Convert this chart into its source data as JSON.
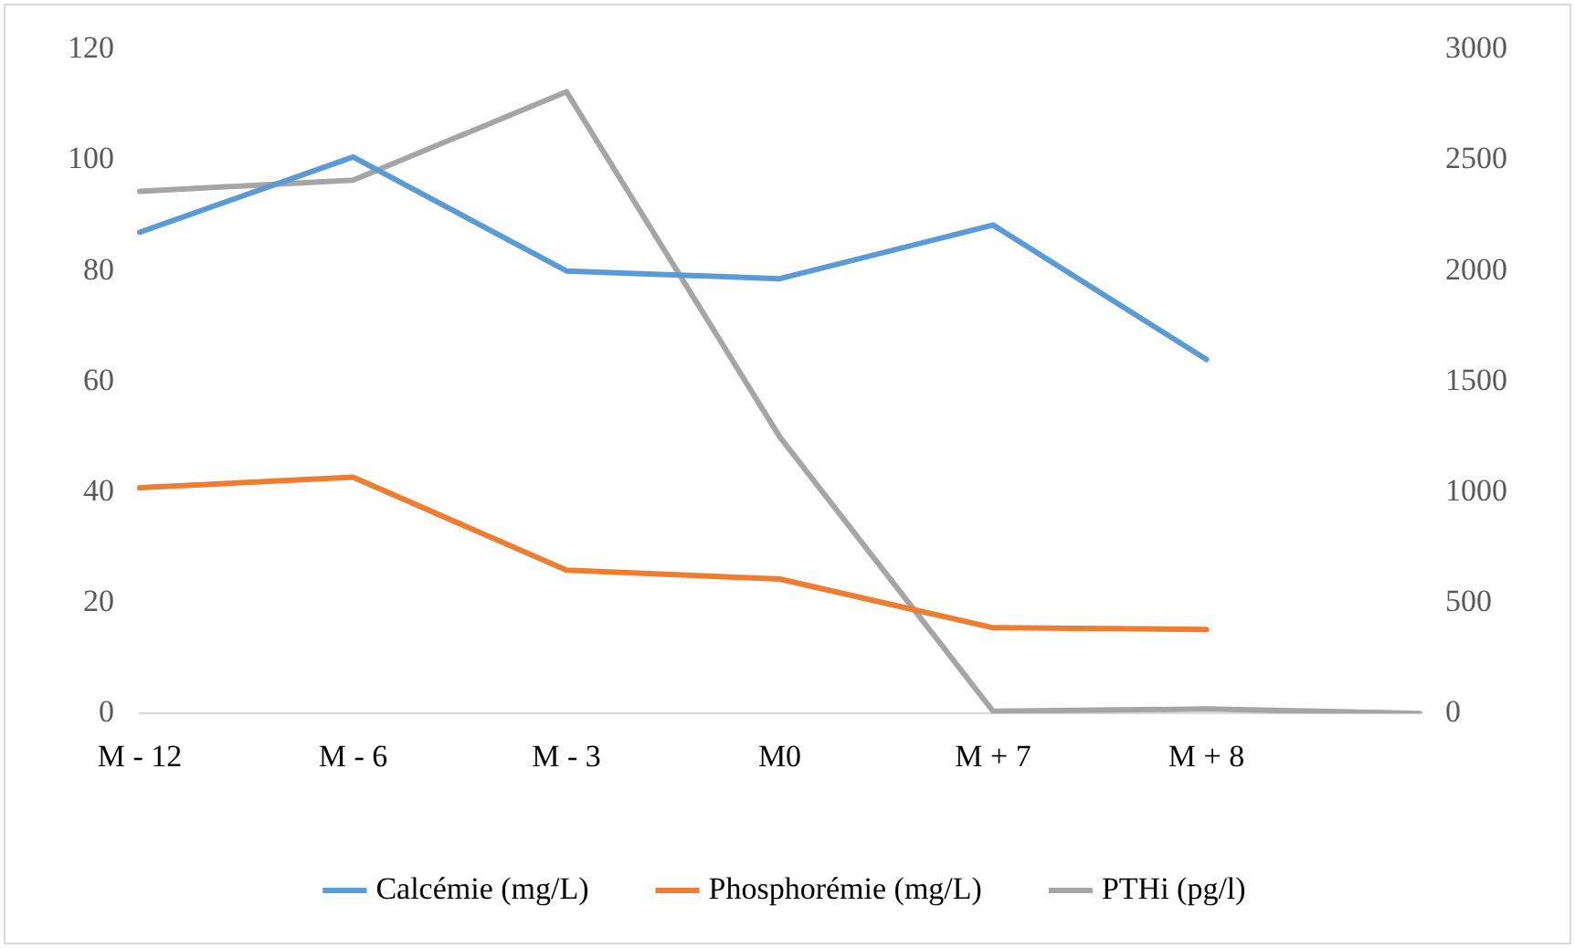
{
  "chart_data": {
    "type": "line",
    "categories": [
      "M - 12",
      "M - 6",
      "M - 3",
      "M0",
      "M + 7",
      "M + 8",
      null
    ],
    "series": [
      {
        "name": "Calcémie (mg/L)",
        "color": "#5b9bd5",
        "values": [
          87,
          100.6,
          80,
          78.6,
          88.3,
          64,
          null
        ]
      },
      {
        "name": "Phosphorémie (mg/L)",
        "color": "#ed7d31",
        "values": [
          40.8,
          42.7,
          25.9,
          24.3,
          15.5,
          15.2,
          null
        ]
      },
      {
        "name": "PTHi (pg/l)",
        "color": "#a5a5a5",
        "axis": "y2",
        "values": [
          2360,
          2410,
          2810,
          1250,
          10,
          20,
          0
        ]
      }
    ],
    "ylim": [
      0,
      120
    ],
    "yticks": [
      0,
      20,
      40,
      60,
      80,
      100,
      120
    ],
    "y2lim": [
      0,
      3000
    ],
    "y2ticks": [
      0,
      500,
      1000,
      1500,
      2000,
      2500,
      3000
    ],
    "grid": false,
    "legend": "bottom",
    "marker": "none",
    "line_style": "solid"
  }
}
